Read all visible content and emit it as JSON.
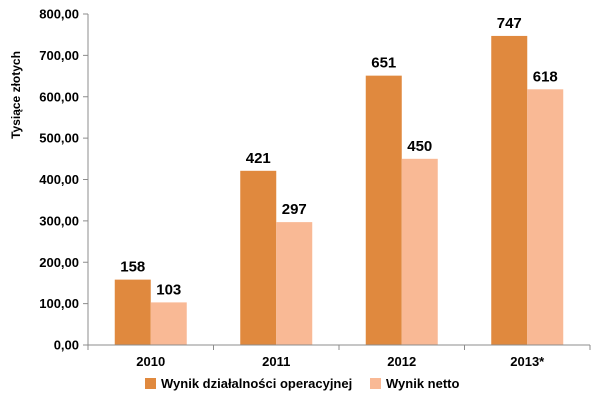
{
  "chart_data": {
    "type": "bar",
    "title": "",
    "xlabel": "",
    "ylabel": "Tysiące złotych",
    "categories": [
      "2010",
      "2011",
      "2012",
      "2013*"
    ],
    "series": [
      {
        "name": "Wynik działalności operacyjnej",
        "values": [
          158,
          421,
          651,
          747
        ],
        "color": "#E0893E"
      },
      {
        "name": "Wynik netto",
        "values": [
          103,
          297,
          450,
          618
        ],
        "color": "#F9B995"
      }
    ],
    "ylim": [
      0,
      800
    ],
    "yticks": [
      "0,00",
      "100,00",
      "200,00",
      "300,00",
      "400,00",
      "500,00",
      "600,00",
      "700,00",
      "800,00"
    ],
    "data_labels": [
      [
        "158",
        "421",
        "651",
        "747"
      ],
      [
        "103",
        "297",
        "450",
        "618"
      ]
    ],
    "grid": false,
    "legend": "bottom"
  }
}
